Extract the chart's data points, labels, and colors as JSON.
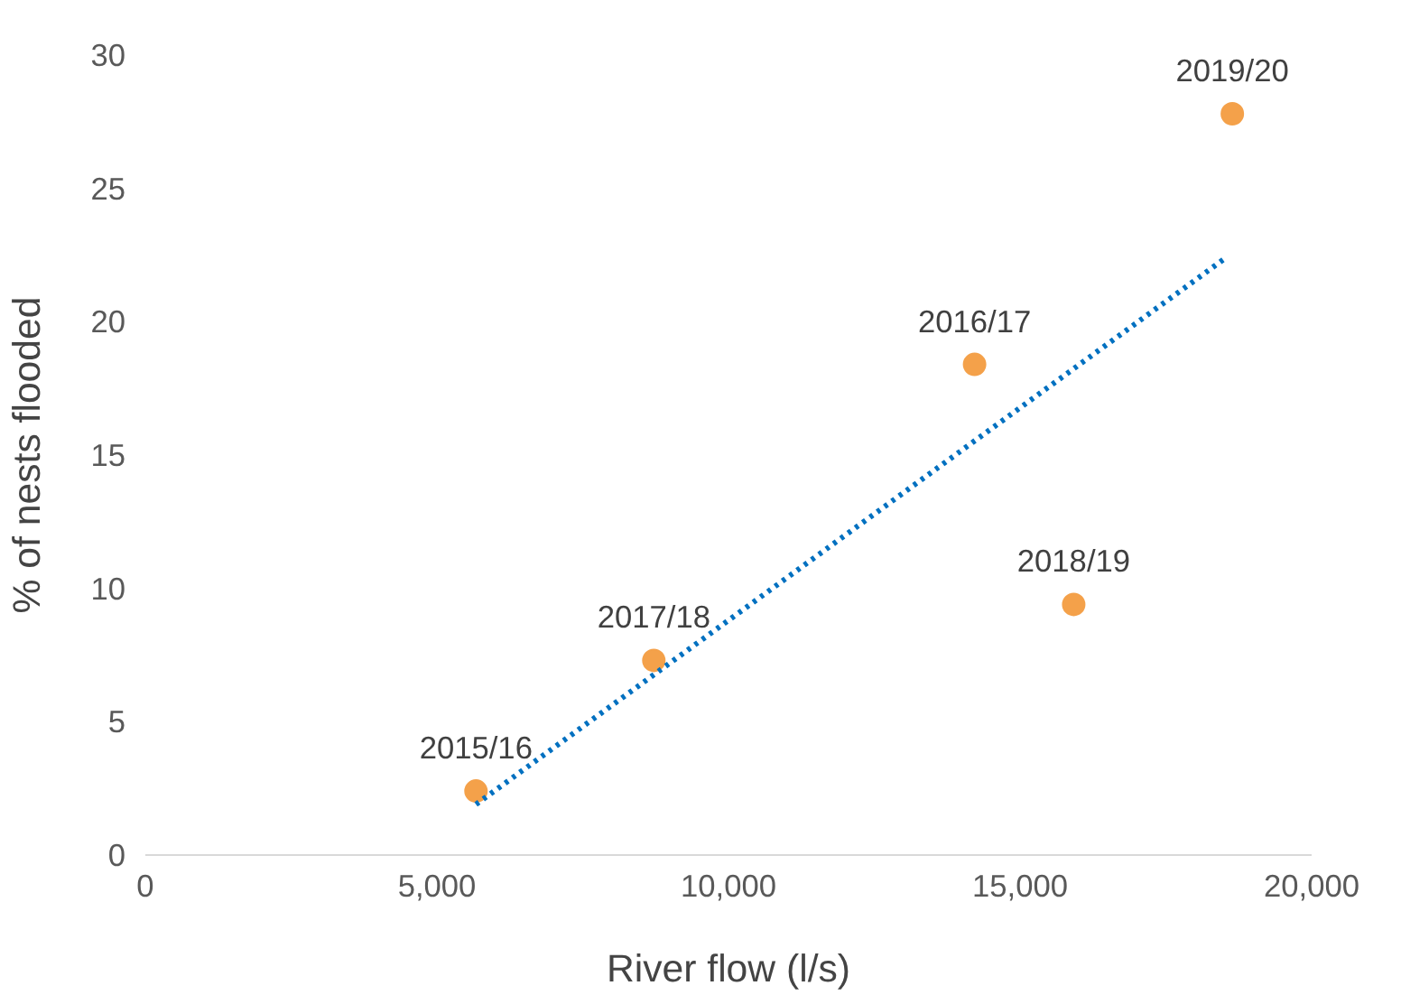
{
  "chart_data": {
    "type": "scatter",
    "xlabel": "River flow (l/s)",
    "ylabel": "% of nests flooded",
    "xlim": [
      0,
      20000
    ],
    "ylim": [
      0,
      30
    ],
    "xticks": [
      {
        "value": 0,
        "label": "0"
      },
      {
        "value": 5000,
        "label": "5,000"
      },
      {
        "value": 10000,
        "label": "10,000"
      },
      {
        "value": 15000,
        "label": "15,000"
      },
      {
        "value": 20000,
        "label": "20,000"
      }
    ],
    "yticks": [
      0,
      5,
      10,
      15,
      20,
      25,
      30
    ],
    "grid": false,
    "marker": "circle",
    "series": [
      {
        "color": "#f4a14a",
        "x": [
          5670,
          8720,
          14220,
          15920,
          18640
        ],
        "values": [
          2.4,
          7.3,
          18.4,
          9.4,
          27.8
        ]
      },
      {
        "type": "line",
        "color": "#0070c0",
        "line_style": "dotted",
        "marker": "none",
        "x": [
          5670,
          18530
        ],
        "values": [
          1.9,
          22.4
        ]
      }
    ],
    "annotations": [
      {
        "text": "2015/16",
        "x": 5670,
        "y": 2.4
      },
      {
        "text": "2017/18",
        "x": 8720,
        "y": 7.3
      },
      {
        "text": "2016/17",
        "x": 14220,
        "y": 18.4
      },
      {
        "text": "2018/19",
        "x": 15920,
        "y": 9.4
      },
      {
        "text": "2019/20",
        "x": 18640,
        "y": 27.8
      }
    ]
  }
}
